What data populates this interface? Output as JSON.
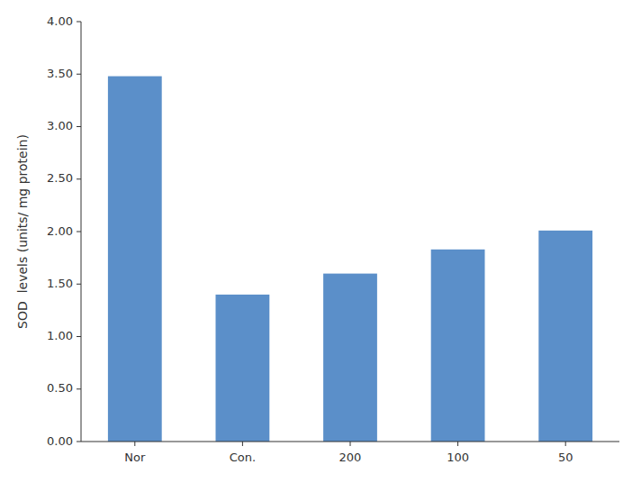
{
  "chart_data": {
    "type": "bar",
    "categories": [
      "Nor",
      "Con.",
      "200",
      "100",
      "50"
    ],
    "values": [
      3.48,
      1.4,
      1.6,
      1.83,
      2.01
    ],
    "color": "#5b8fc9",
    "ylabel": "SOD  levels (units/ mg protein)",
    "ylim": [
      0,
      4.0
    ],
    "yticks": [
      {
        "value": 0.0,
        "label": "0.00"
      },
      {
        "value": 0.5,
        "label": "0.50"
      },
      {
        "value": 1.0,
        "label": "1.00"
      },
      {
        "value": 1.5,
        "label": "1.50"
      },
      {
        "value": 2.0,
        "label": "2.00"
      },
      {
        "value": 2.5,
        "label": "2.50"
      },
      {
        "value": 3.0,
        "label": "3.00"
      },
      {
        "value": 3.5,
        "label": "3.50"
      },
      {
        "value": 4.0,
        "label": "4.00"
      }
    ],
    "grid": false
  }
}
